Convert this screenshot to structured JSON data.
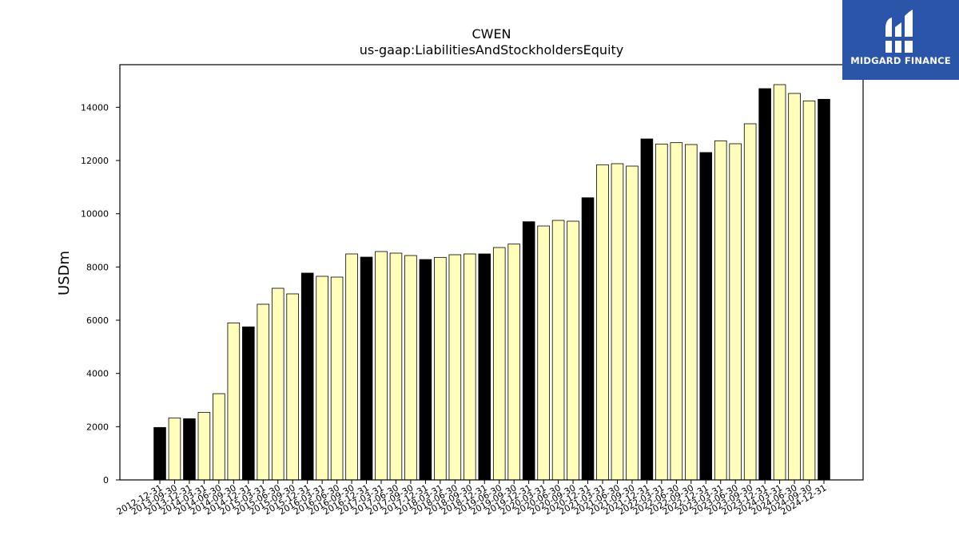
{
  "chart_data": {
    "type": "bar",
    "title": "CWEN",
    "subtitle": "us-gaap:LiabilitiesAndStockholdersEquity",
    "xlabel": "",
    "ylabel": "USDm",
    "ylim": [
      0,
      15600
    ],
    "yticks": [
      0,
      2000,
      4000,
      6000,
      8000,
      10000,
      12000,
      14000
    ],
    "grid": false,
    "categories": [
      "2012-12-31",
      "2013-09-30",
      "2013-12-31",
      "2014-03-31",
      "2014-06-30",
      "2014-09-30",
      "2014-12-31",
      "2015-03-31",
      "2015-06-30",
      "2015-09-30",
      "2015-12-31",
      "2016-03-31",
      "2016-06-30",
      "2016-09-30",
      "2016-12-31",
      "2017-03-31",
      "2017-06-30",
      "2017-09-30",
      "2017-12-31",
      "2018-03-31",
      "2018-06-30",
      "2018-09-30",
      "2018-12-31",
      "2019-06-30",
      "2019-09-30",
      "2019-12-31",
      "2020-03-31",
      "2020-06-30",
      "2020-09-30",
      "2020-12-31",
      "2021-03-31",
      "2021-06-30",
      "2021-09-30",
      "2021-12-31",
      "2022-03-31",
      "2022-06-30",
      "2022-09-30",
      "2022-12-31",
      "2023-03-31",
      "2023-06-30",
      "2023-09-30",
      "2023-12-31",
      "2024-03-31",
      "2024-06-30",
      "2024-09-30",
      "2024-12-31"
    ],
    "values": [
      1970,
      2330,
      2300,
      2540,
      3240,
      5900,
      5750,
      6600,
      7200,
      6990,
      7770,
      7650,
      7620,
      8490,
      8370,
      8580,
      8520,
      8430,
      8280,
      8360,
      8460,
      8490,
      8490,
      8730,
      8860,
      9700,
      9540,
      9750,
      9720,
      10600,
      11840,
      11880,
      11790,
      12810,
      12620,
      12670,
      12600,
      12300,
      12740,
      12630,
      13380,
      14700,
      14850,
      14520,
      14240,
      14300
    ],
    "annual_flags": [
      1,
      0,
      1,
      0,
      0,
      0,
      1,
      0,
      0,
      0,
      1,
      0,
      0,
      0,
      1,
      0,
      0,
      0,
      1,
      0,
      0,
      0,
      1,
      0,
      0,
      1,
      0,
      0,
      0,
      1,
      0,
      0,
      0,
      1,
      0,
      0,
      0,
      1,
      0,
      0,
      0,
      1,
      0,
      0,
      0,
      1
    ],
    "colors": {
      "annual": "#000000",
      "quarterly": "#ffffbb",
      "edge": "#000000"
    }
  },
  "logo": {
    "text": "MIDGARD FINANCE",
    "background": "#2a55a8"
  }
}
